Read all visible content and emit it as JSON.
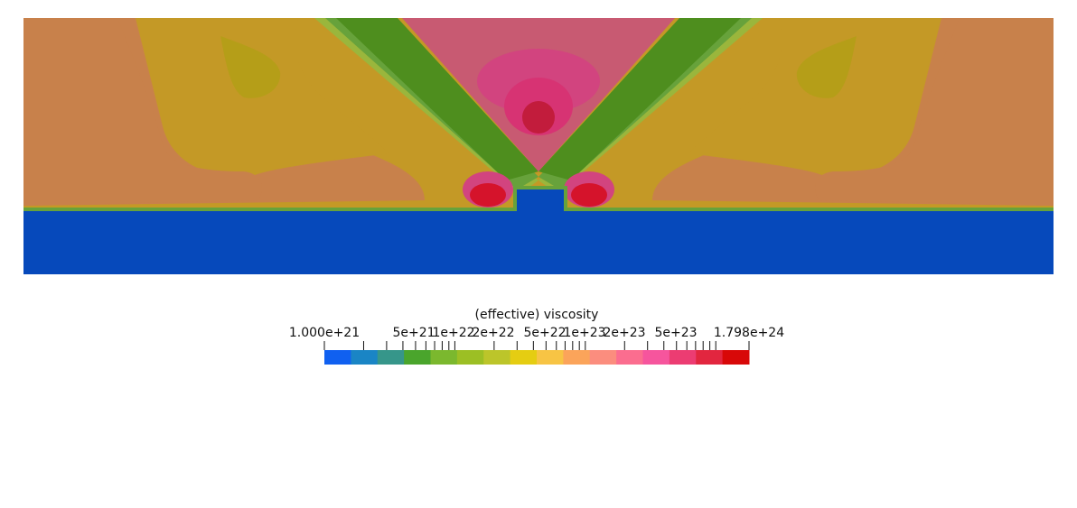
{
  "colorbar": {
    "title": "(effective) viscosity",
    "tick_labels": [
      "1.000e+21",
      "5e+21",
      "1e+22",
      "2e+22",
      "5e+22",
      "1e+23",
      "2e+23",
      "5e+23",
      "1.798e+24"
    ],
    "range": [
      1e+21,
      1.798e+24
    ],
    "scale": "log",
    "colors": [
      "#1060f0",
      "#1a85c5",
      "#36968a",
      "#4aa52c",
      "#7bb82e",
      "#9cbf24",
      "#bcc52a",
      "#e5cd12",
      "#f7c444",
      "#fba45a",
      "#fb8d7e",
      "#fb6d8f",
      "#f6559d",
      "#ec3c72",
      "#e2263f",
      "#d80808"
    ]
  },
  "palette": {
    "base": "#0649bb",
    "orange": "#c8814b",
    "gold": "#c49926",
    "olive": "#b59e18",
    "green_dark": "#4e8e1e",
    "green": "#67a23b",
    "green_light": "#9ab63c",
    "pink": "#c85a72",
    "magenta": "#d2447f",
    "magenta_dark": "#d73373",
    "crimson": "#c21c3c",
    "red": "#d5132b"
  }
}
